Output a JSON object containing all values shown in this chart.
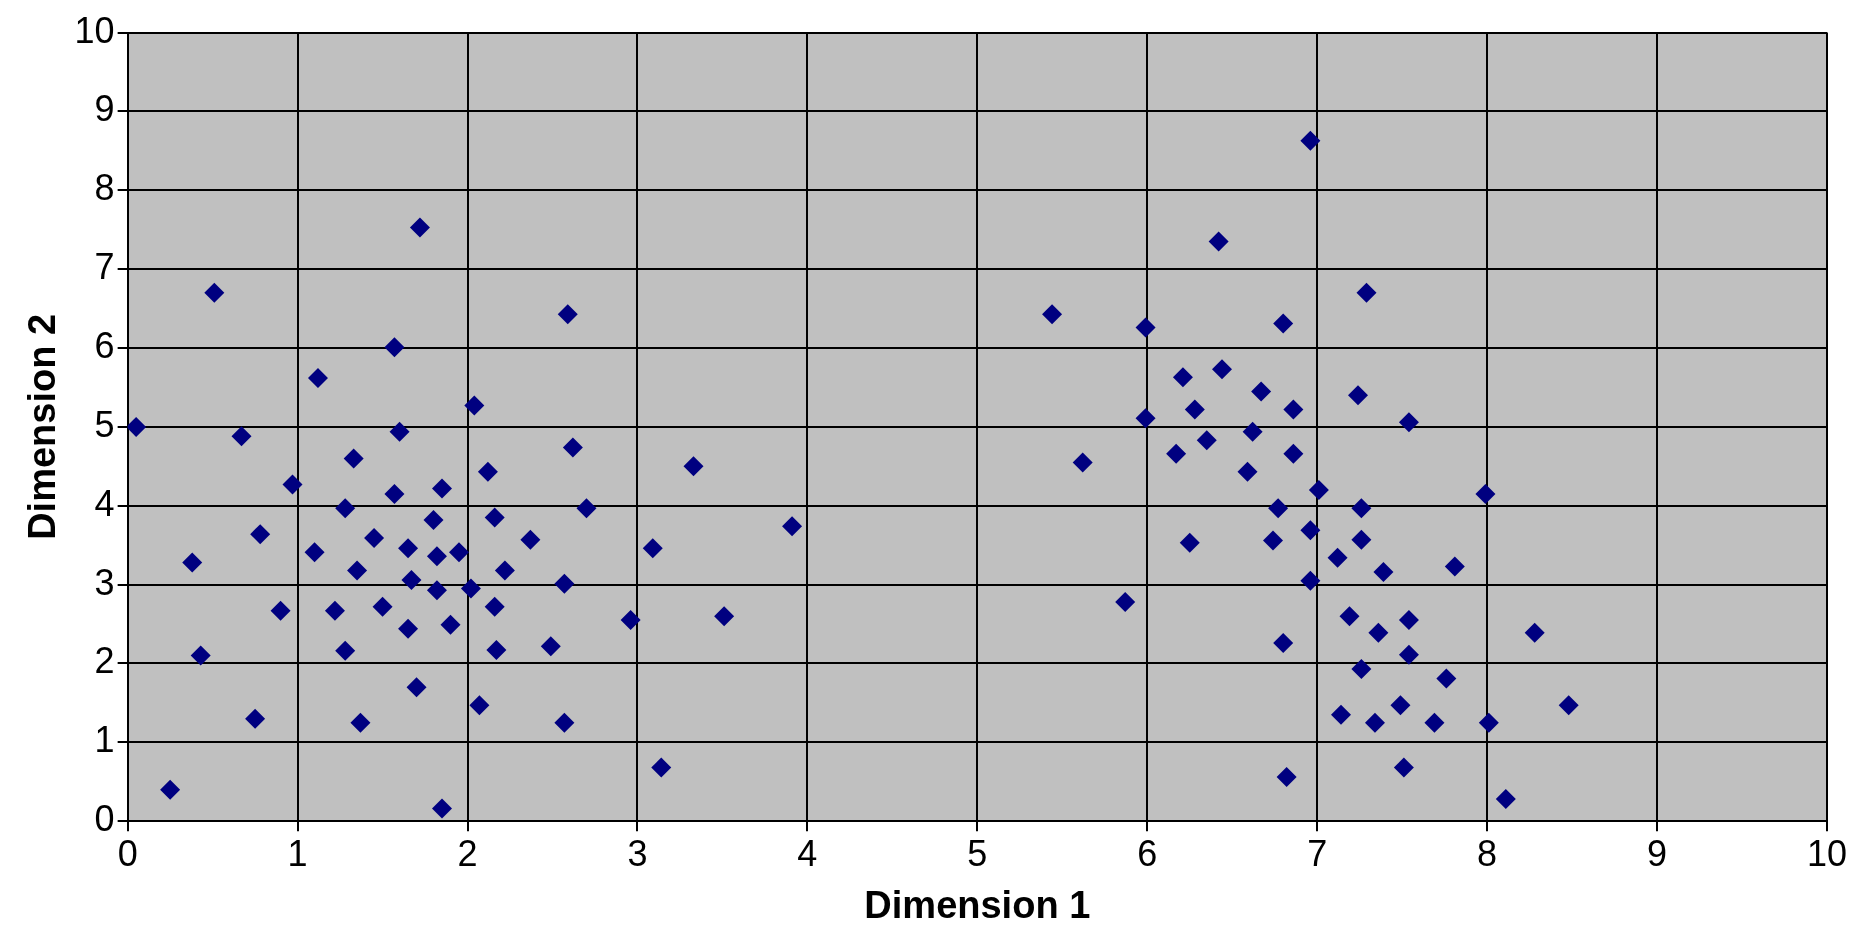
{
  "chart_data": {
    "type": "scatter",
    "xlabel": "Dimension 1",
    "ylabel": "Dimension 2",
    "color": "#000080",
    "marker": "diamond",
    "grid": true,
    "xlim": [
      0,
      10
    ],
    "ylim": [
      0,
      10
    ],
    "xticks": [
      0,
      1,
      2,
      3,
      4,
      5,
      6,
      7,
      8,
      9,
      10
    ],
    "yticks": [
      0,
      1,
      2,
      3,
      4,
      5,
      6,
      7,
      8,
      9,
      10
    ],
    "x": [
      0.05,
      0.25,
      0.38,
      0.43,
      0.51,
      0.67,
      0.75,
      0.78,
      0.9,
      0.97,
      1.1,
      1.12,
      1.22,
      1.28,
      1.28,
      1.33,
      1.35,
      1.37,
      1.45,
      1.5,
      1.57,
      1.57,
      1.6,
      1.65,
      1.65,
      1.67,
      1.7,
      1.72,
      1.8,
      1.82,
      1.82,
      1.85,
      1.85,
      1.9,
      1.95,
      2.02,
      2.04,
      2.07,
      2.12,
      2.16,
      2.16,
      2.17,
      2.22,
      2.37,
      2.49,
      2.57,
      2.57,
      2.59,
      2.62,
      2.7,
      2.96,
      3.09,
      3.14,
      3.33,
      3.51,
      3.91,
      5.44,
      5.62,
      5.87,
      5.99,
      5.99,
      6.17,
      6.21,
      6.25,
      6.28,
      6.35,
      6.42,
      6.44,
      6.59,
      6.62,
      6.67,
      6.74,
      6.77,
      6.8,
      6.8,
      6.82,
      6.86,
      6.86,
      6.96,
      6.96,
      6.96,
      7.01,
      7.12,
      7.14,
      7.19,
      7.24,
      7.26,
      7.26,
      7.26,
      7.29,
      7.34,
      7.36,
      7.39,
      7.49,
      7.51,
      7.54,
      7.54,
      7.54,
      7.69,
      7.76,
      7.81,
      7.99,
      8.01,
      8.11,
      8.28,
      8.48
    ],
    "values": [
      5.0,
      0.4,
      3.28,
      2.1,
      6.7,
      4.88,
      1.3,
      3.64,
      2.67,
      4.27,
      3.41,
      5.62,
      2.67,
      2.16,
      3.97,
      4.6,
      3.18,
      1.25,
      3.59,
      2.72,
      6.01,
      4.15,
      4.94,
      3.46,
      2.44,
      3.06,
      1.7,
      7.53,
      3.82,
      3.36,
      2.93,
      4.22,
      0.16,
      2.49,
      3.41,
      2.95,
      5.27,
      1.47,
      4.43,
      3.85,
      2.72,
      2.17,
      3.18,
      3.57,
      2.22,
      3.01,
      1.25,
      6.43,
      4.74,
      3.97,
      2.55,
      3.46,
      0.68,
      4.5,
      2.6,
      3.74,
      6.43,
      4.55,
      2.78,
      6.26,
      5.11,
      4.66,
      5.63,
      3.53,
      5.22,
      4.83,
      7.35,
      5.73,
      4.43,
      4.94,
      5.45,
      3.56,
      3.97,
      6.31,
      2.26,
      0.56,
      5.22,
      4.66,
      8.63,
      3.69,
      3.05,
      4.2,
      3.34,
      1.35,
      2.6,
      5.4,
      3.97,
      3.57,
      1.93,
      6.7,
      1.25,
      2.39,
      3.16,
      1.47,
      0.68,
      2.55,
      2.11,
      5.06,
      1.25,
      1.81,
      3.23,
      4.15,
      1.25,
      0.28,
      2.39,
      1.47
    ]
  }
}
